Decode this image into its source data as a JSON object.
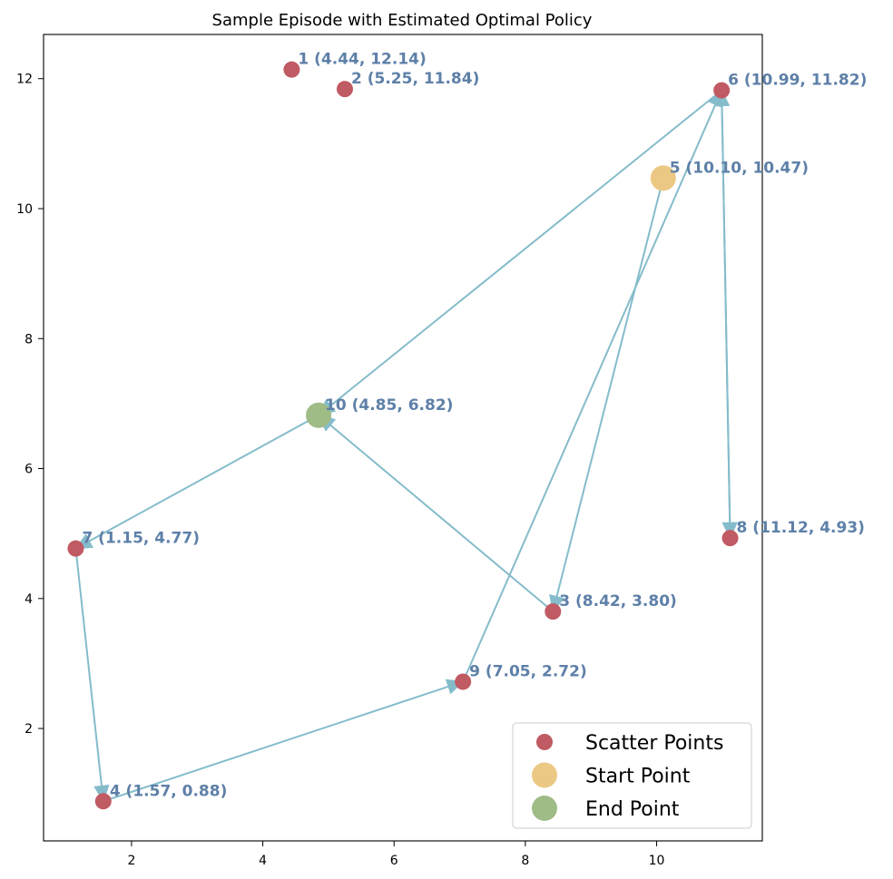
{
  "chart_data": {
    "type": "scatter",
    "title": "Sample Episode with Estimated Optimal Policy",
    "xlabel": "",
    "ylabel": "",
    "xlim": [
      0.66,
      11.61
    ],
    "ylim": [
      0.27,
      12.68
    ],
    "xticks": [
      2,
      4,
      6,
      8,
      10
    ],
    "yticks": [
      2,
      4,
      6,
      8,
      10,
      12
    ],
    "grid": false,
    "legend_position": "bottom-right",
    "colors": {
      "scatter": "#c05a63",
      "start": "#ebc883",
      "end": "#9fbb86",
      "arrow": "#85bccb",
      "label": "#5e80a8"
    },
    "points": [
      {
        "id": 1,
        "x": 4.44,
        "y": 12.14,
        "label": "1 (4.44, 12.14)"
      },
      {
        "id": 2,
        "x": 5.25,
        "y": 11.84,
        "label": "2 (5.25, 11.84)"
      },
      {
        "id": 3,
        "x": 8.42,
        "y": 3.8,
        "label": "3 (8.42, 3.80)"
      },
      {
        "id": 4,
        "x": 1.57,
        "y": 0.88,
        "label": "4 (1.57, 0.88)"
      },
      {
        "id": 5,
        "x": 10.1,
        "y": 10.47,
        "label": "5 (10.10, 10.47)"
      },
      {
        "id": 6,
        "x": 10.99,
        "y": 11.82,
        "label": "6 (10.99, 11.82)"
      },
      {
        "id": 7,
        "x": 1.15,
        "y": 4.77,
        "label": "7 (1.15, 4.77)"
      },
      {
        "id": 8,
        "x": 11.12,
        "y": 4.93,
        "label": "8 (11.12, 4.93)"
      },
      {
        "id": 9,
        "x": 7.05,
        "y": 2.72,
        "label": "9 (7.05, 2.72)"
      },
      {
        "id": 10,
        "x": 4.85,
        "y": 6.82,
        "label": "10 (4.85, 6.82)"
      }
    ],
    "start_point": 5,
    "end_point": 10,
    "path": [
      5,
      3,
      10,
      7,
      4,
      9,
      6,
      8,
      6,
      10
    ],
    "legend": [
      {
        "key": "scatter",
        "label": "Scatter Points"
      },
      {
        "key": "start",
        "label": "Start Point"
      },
      {
        "key": "end",
        "label": "End Point"
      }
    ]
  }
}
